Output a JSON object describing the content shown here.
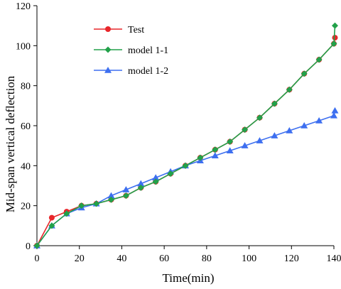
{
  "chart_data": {
    "type": "line",
    "title": "",
    "xlabel": "Time(min)",
    "ylabel": "Mid-span vertical deflection",
    "xlim": [
      0,
      140
    ],
    "ylim": [
      0,
      120
    ],
    "xticks": [
      0,
      20,
      40,
      60,
      80,
      100,
      120,
      140
    ],
    "yticks": [
      0,
      20,
      40,
      60,
      80,
      100,
      120
    ],
    "grid": false,
    "legend_position": "top-left",
    "series": [
      {
        "name": "Test",
        "color": "#e8262a",
        "marker": "circle",
        "points": [
          [
            0,
            0
          ],
          [
            7,
            14
          ],
          [
            14,
            17
          ],
          [
            21,
            20
          ],
          [
            28,
            21
          ],
          [
            35,
            23
          ],
          [
            42,
            25
          ],
          [
            49,
            29
          ],
          [
            56,
            32
          ],
          [
            63,
            36
          ],
          [
            70,
            40
          ],
          [
            77,
            44
          ],
          [
            84,
            48
          ],
          [
            91,
            52
          ],
          [
            98,
            58
          ],
          [
            105,
            64
          ],
          [
            112,
            71
          ],
          [
            119,
            78
          ],
          [
            126,
            86
          ],
          [
            133,
            93
          ],
          [
            140,
            101
          ],
          [
            140.5,
            104
          ]
        ]
      },
      {
        "name": "model 1-1",
        "color": "#22a14a",
        "marker": "diamond",
        "points": [
          [
            0,
            0
          ],
          [
            7,
            10
          ],
          [
            14,
            16
          ],
          [
            21,
            20
          ],
          [
            28,
            21
          ],
          [
            35,
            23
          ],
          [
            42,
            25
          ],
          [
            49,
            29
          ],
          [
            56,
            32
          ],
          [
            63,
            36
          ],
          [
            70,
            40
          ],
          [
            77,
            44
          ],
          [
            84,
            48
          ],
          [
            91,
            52
          ],
          [
            98,
            58
          ],
          [
            105,
            64
          ],
          [
            112,
            71
          ],
          [
            119,
            78
          ],
          [
            126,
            86
          ],
          [
            133,
            93
          ],
          [
            140,
            101
          ],
          [
            140.5,
            110
          ]
        ]
      },
      {
        "name": "model 1-2",
        "color": "#3d6ff0",
        "marker": "triangle",
        "points": [
          [
            0,
            0
          ],
          [
            7,
            10
          ],
          [
            14,
            16
          ],
          [
            21,
            19
          ],
          [
            28,
            21
          ],
          [
            35,
            25
          ],
          [
            42,
            28
          ],
          [
            49,
            31
          ],
          [
            56,
            34
          ],
          [
            63,
            37
          ],
          [
            70,
            40
          ],
          [
            77,
            42.5
          ],
          [
            84,
            45
          ],
          [
            91,
            47.5
          ],
          [
            98,
            50
          ],
          [
            105,
            52.5
          ],
          [
            112,
            55
          ],
          [
            119,
            57.5
          ],
          [
            126,
            60
          ],
          [
            133,
            62.5
          ],
          [
            140,
            65
          ],
          [
            140.5,
            67.5
          ]
        ]
      }
    ]
  }
}
